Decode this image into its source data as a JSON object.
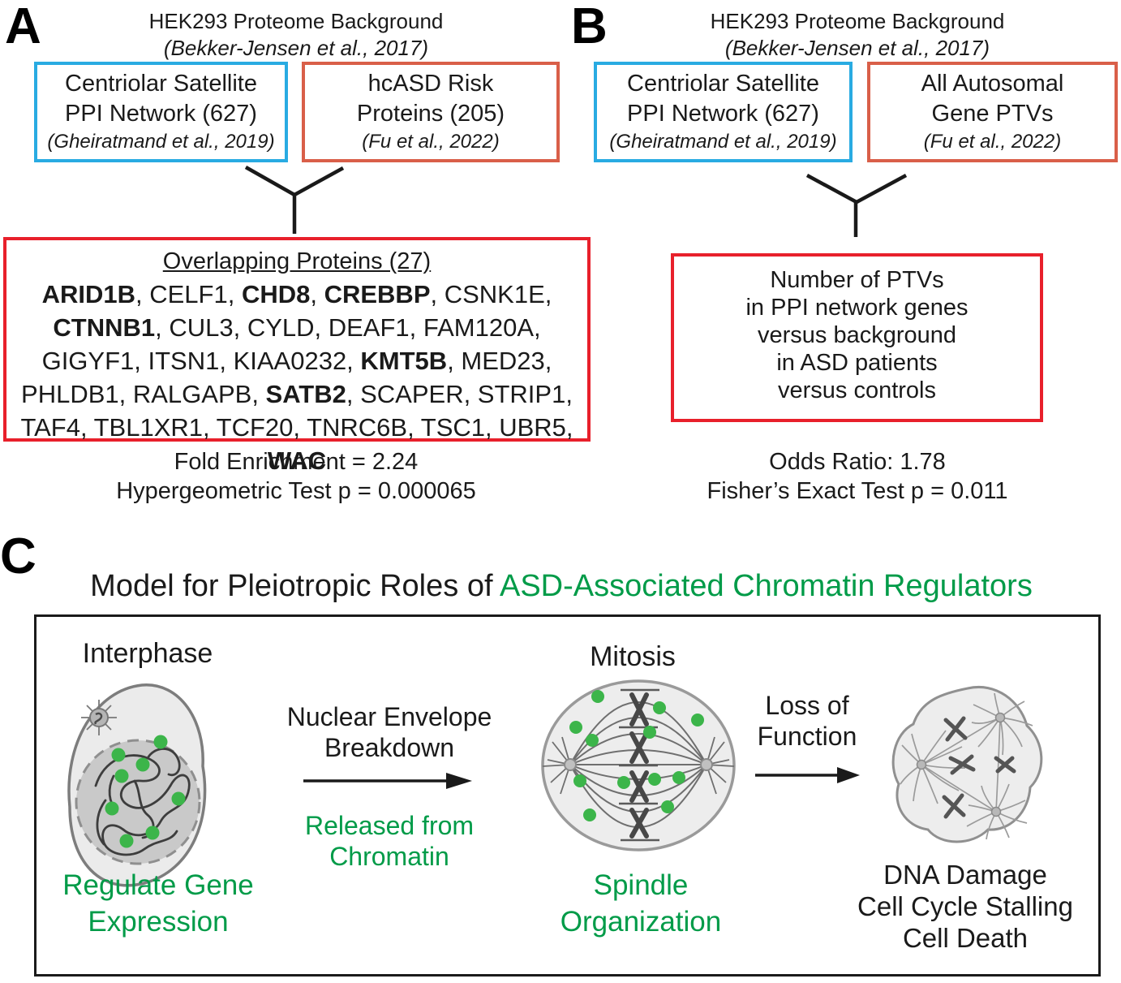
{
  "colors": {
    "ppi_network_blue": "#29ABE2",
    "risk_orange": "#D95F49",
    "result_red": "#E8202B",
    "model_green": "#009B48",
    "protein_dot_green": "#3CB54A"
  },
  "panelA": {
    "label": "A",
    "bg_title": "HEK293 Proteome Background",
    "bg_ref": "(Bekker-Jensen et al., 2017)",
    "left_box": {
      "line1": "Centriolar Satellite",
      "line2": "PPI Network (627)",
      "ref": "(Gheiratmand et al., 2019)"
    },
    "right_box": {
      "line1": "hcASD Risk",
      "line2": "Proteins (205)",
      "ref": "(Fu et al., 2022)"
    },
    "overlap": {
      "title": "Overlapping Proteins (27)",
      "lines": [
        [
          {
            "t": "ARID1B",
            "b": 1
          },
          {
            "t": ", CELF1, "
          },
          {
            "t": "CHD8",
            "b": 1
          },
          {
            "t": ", "
          },
          {
            "t": "CREBBP",
            "b": 1
          },
          {
            "t": ", CSNK1E,"
          }
        ],
        [
          {
            "t": "CTNNB1",
            "b": 1
          },
          {
            "t": ", CUL3, CYLD, DEAF1, FAM120A,"
          }
        ],
        [
          {
            "t": "GIGYF1, ITSN1, KIAA0232, "
          },
          {
            "t": "KMT5B",
            "b": 1
          },
          {
            "t": ", MED23,"
          }
        ],
        [
          {
            "t": "PHLDB1, RALGAPB, "
          },
          {
            "t": "SATB2",
            "b": 1
          },
          {
            "t": ", SCAPER, STRIP1,"
          }
        ],
        [
          {
            "t": "TAF4, TBL1XR1, TCF20, TNRC6B, TSC1, UBR5, "
          },
          {
            "t": "WAC",
            "b": 1
          }
        ]
      ]
    },
    "stat1": "Fold Enrichment = 2.24",
    "stat2": "Hypergeometric Test p = 0.000065"
  },
  "panelB": {
    "label": "B",
    "bg_title": "HEK293 Proteome Background",
    "bg_ref": "(Bekker-Jensen et al., 2017)",
    "left_box": {
      "line1": "Centriolar Satellite",
      "line2": "PPI Network (627)",
      "ref": "(Gheiratmand et al., 2019)"
    },
    "right_box": {
      "line1": "All Autosomal",
      "line2": "Gene PTVs",
      "ref": "(Fu et al., 2022)"
    },
    "ptv_box_lines": [
      "Number of PTVs",
      "in PPI network genes",
      "versus background",
      "in ASD patients",
      "versus controls"
    ],
    "stat1": "Odds Ratio: 1.78",
    "stat2": "Fisher’s Exact Test p = 0.011"
  },
  "panelC": {
    "label": "C",
    "title_black": "Model for Pleiotropic Roles of ",
    "title_green": "ASD-Associated Chromatin Regulators",
    "interphase_label": "Interphase",
    "mitosis_label": "Mitosis",
    "arrow1_top_lines": [
      "Nuclear Envelope",
      "Breakdown"
    ],
    "arrow1_bottom_lines": [
      "Released from",
      "Chromatin"
    ],
    "arrow2_lines": [
      "Loss of",
      "Function"
    ],
    "interphase_caption_lines": [
      "Regulate Gene",
      "Expression"
    ],
    "mitosis_caption_lines": [
      "Spindle",
      "Organization"
    ],
    "outcome_lines": [
      "DNA Damage",
      "Cell Cycle Stalling",
      "Cell Death"
    ]
  }
}
